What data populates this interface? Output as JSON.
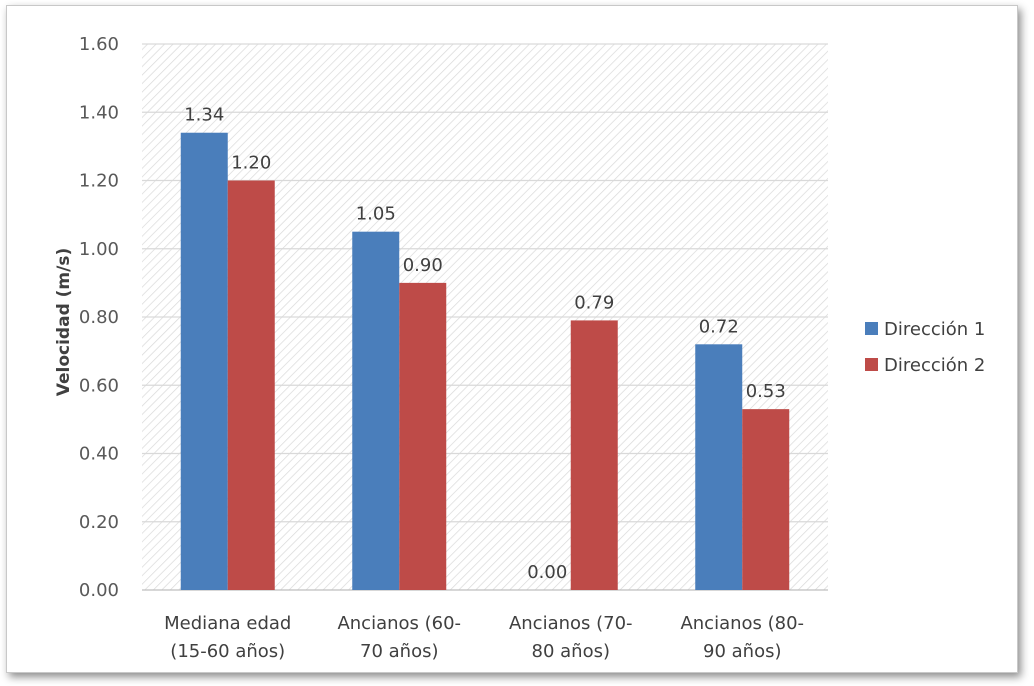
{
  "chart_data": {
    "type": "bar",
    "title": "",
    "xlabel": "",
    "ylabel": "Velocidad (m/s)",
    "ylim": [
      0,
      1.6
    ],
    "yticks": [
      "0.00",
      "0.20",
      "0.40",
      "0.60",
      "0.80",
      "1.00",
      "1.20",
      "1.40",
      "1.60"
    ],
    "categories": [
      [
        "Mediana edad",
        "(15-60 años)"
      ],
      [
        "Ancianos (60-",
        "70 años)"
      ],
      [
        "Ancianos (70-",
        "80 años)"
      ],
      [
        "Ancianos (80-",
        "90 años)"
      ]
    ],
    "series": [
      {
        "name": "Dirección 1",
        "color": "#4a7ebb",
        "values": [
          1.34,
          1.05,
          0.0,
          0.72
        ],
        "labels": [
          "1.34",
          "1.05",
          "0.00",
          "0.72"
        ]
      },
      {
        "name": "Dirección 2",
        "color": "#be4b48",
        "values": [
          1.2,
          0.9,
          0.79,
          0.53
        ],
        "labels": [
          "1.20",
          "0.90",
          "0.79",
          "0.53"
        ]
      }
    ],
    "grid": true,
    "legend": "right"
  }
}
